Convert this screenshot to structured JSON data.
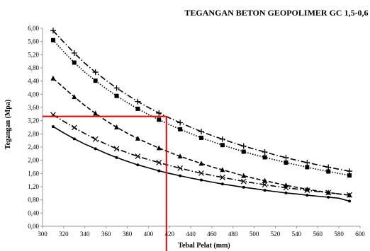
{
  "chart_data": {
    "type": "line",
    "title": "TEGANGAN BETON GEOPOLIMER GC 1,5-0,6",
    "xlabel": "Tebal Pelat (mm)",
    "ylabel": "Tegangan (Mpa)",
    "xlim": [
      300,
      600
    ],
    "ylim": [
      0,
      6
    ],
    "x_ticks": [
      "300",
      "320",
      "340",
      "360",
      "380",
      "400",
      "420",
      "440",
      "460",
      "480",
      "500",
      "520",
      "540",
      "560",
      "580",
      "600"
    ],
    "y_ticks": [
      "0,00",
      "0,40",
      "0,80",
      "1,20",
      "1,60",
      "2,00",
      "2,40",
      "2,80",
      "3,20",
      "3,60",
      "4,00",
      "4,40",
      "4,80",
      "5,20",
      "5,60",
      "6,00"
    ],
    "grid": false,
    "legend": "none",
    "x": [
      310,
      320,
      330,
      340,
      350,
      360,
      370,
      380,
      390,
      400,
      410,
      420,
      430,
      440,
      450,
      460,
      470,
      480,
      490,
      500,
      510,
      520,
      530,
      540,
      550,
      560,
      570,
      580,
      590
    ],
    "series": [
      {
        "marker": "plus",
        "style": "dashdot",
        "values": [
          5.93,
          5.58,
          5.25,
          4.94,
          4.67,
          4.42,
          4.19,
          3.98,
          3.78,
          3.6,
          3.43,
          3.28,
          3.14,
          3.0,
          2.87,
          2.75,
          2.64,
          2.53,
          2.43,
          2.34,
          2.25,
          2.16,
          2.08,
          2.0,
          1.93,
          1.86,
          1.79,
          1.73,
          1.67
        ]
      },
      {
        "marker": "square",
        "style": "dotted",
        "values": [
          5.64,
          5.29,
          4.96,
          4.67,
          4.41,
          4.17,
          3.95,
          3.75,
          3.56,
          3.39,
          3.23,
          3.08,
          2.94,
          2.81,
          2.68,
          2.57,
          2.46,
          2.36,
          2.26,
          2.17,
          2.09,
          2.01,
          1.93,
          1.86,
          1.79,
          1.72,
          1.66,
          1.6,
          1.54
        ]
      },
      {
        "marker": "triangle",
        "style": "dashed",
        "values": [
          4.48,
          4.2,
          3.92,
          3.66,
          3.42,
          3.2,
          3.0,
          2.82,
          2.66,
          2.51,
          2.37,
          2.24,
          2.12,
          2.01,
          1.9,
          1.8,
          1.71,
          1.62,
          1.53,
          1.45,
          1.38,
          1.31,
          1.24,
          1.18,
          1.12,
          1.07,
          1.02,
          0.98,
          0.94
        ]
      },
      {
        "marker": "x",
        "style": "dashdot",
        "values": [
          3.38,
          3.18,
          2.99,
          2.81,
          2.64,
          2.49,
          2.35,
          2.23,
          2.12,
          2.02,
          1.93,
          1.84,
          1.76,
          1.68,
          1.61,
          1.54,
          1.48,
          1.42,
          1.36,
          1.31,
          1.26,
          1.21,
          1.17,
          1.13,
          1.09,
          1.05,
          1.02,
          0.98,
          0.95
        ]
      },
      {
        "marker": "dot",
        "style": "solid",
        "values": [
          3.02,
          2.83,
          2.65,
          2.49,
          2.35,
          2.21,
          2.08,
          1.97,
          1.86,
          1.77,
          1.68,
          1.6,
          1.53,
          1.46,
          1.4,
          1.34,
          1.28,
          1.23,
          1.18,
          1.14,
          1.09,
          1.05,
          1.01,
          0.98,
          0.94,
          0.91,
          0.88,
          0.85,
          0.76
        ]
      }
    ],
    "reference_lines": {
      "color": "#e00000",
      "x_value": 417,
      "y_value": 3.33
    },
    "colors": {
      "series": "#000000",
      "reference": "#e00000"
    }
  }
}
